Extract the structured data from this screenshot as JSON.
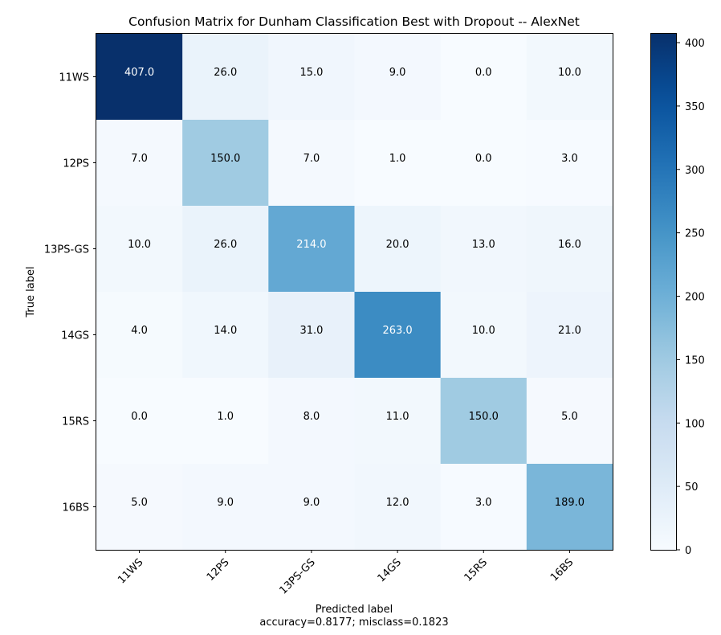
{
  "chart_data": {
    "type": "heatmap",
    "title": "Confusion Matrix for Dunham Classification Best with Dropout -- AlexNet",
    "xlabel": "Predicted label",
    "xlabel_sub": "accuracy=0.8177; misclass=0.1823",
    "ylabel": "True label",
    "x_categories": [
      "11WS",
      "12PS",
      "13PS-GS",
      "14GS",
      "15RS",
      "16BS"
    ],
    "y_categories": [
      "11WS",
      "12PS",
      "13PS-GS",
      "14GS",
      "15RS",
      "16BS"
    ],
    "values": [
      [
        407,
        26,
        15,
        9,
        0,
        10
      ],
      [
        7,
        150,
        7,
        1,
        0,
        3
      ],
      [
        10,
        26,
        214,
        20,
        13,
        16
      ],
      [
        4,
        14,
        31,
        263,
        10,
        21
      ],
      [
        0,
        1,
        8,
        11,
        150,
        5
      ],
      [
        5,
        9,
        9,
        12,
        3,
        189
      ]
    ],
    "cell_labels": [
      [
        "407.0",
        "26.0",
        "15.0",
        "9.0",
        "0.0",
        "10.0"
      ],
      [
        "7.0",
        "150.0",
        "7.0",
        "1.0",
        "0.0",
        "3.0"
      ],
      [
        "10.0",
        "26.0",
        "214.0",
        "20.0",
        "13.0",
        "16.0"
      ],
      [
        "4.0",
        "14.0",
        "31.0",
        "263.0",
        "10.0",
        "21.0"
      ],
      [
        "0.0",
        "1.0",
        "8.0",
        "11.0",
        "150.0",
        "5.0"
      ],
      [
        "5.0",
        "9.0",
        "9.0",
        "12.0",
        "3.0",
        "189.0"
      ]
    ],
    "colormap": "Blues",
    "colorbar": {
      "range": [
        0,
        407
      ],
      "ticks": [
        0,
        50,
        100,
        150,
        200,
        250,
        300,
        350,
        400
      ],
      "tick_labels": [
        "0",
        "50",
        "100",
        "150",
        "200",
        "250",
        "300",
        "350",
        "400"
      ]
    },
    "grid": false
  }
}
